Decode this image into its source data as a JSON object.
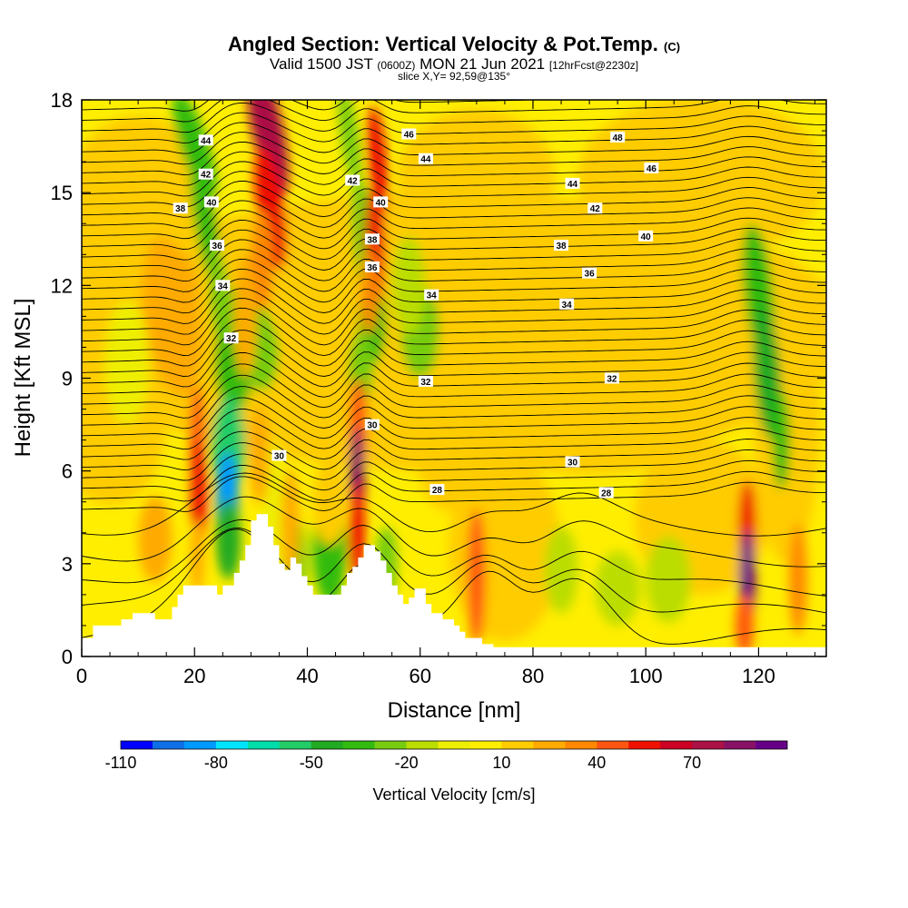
{
  "title": {
    "main": "Angled Section: Vertical Velocity & Pot.Temp.",
    "main_tag": "(C)",
    "valid_a": "Valid 1500 JST",
    "valid_zulu": "(0600Z)",
    "valid_b": "MON 21 Jun 2021",
    "valid_fcst": "[12hrFcst@2230z]",
    "slice": "slice X,Y= 92,59@135°"
  },
  "chart_data": {
    "type": "heatmap",
    "xlabel": "Distance [nm]",
    "ylabel": "Height [Kft MSL]",
    "xlim": [
      0,
      132
    ],
    "ylim": [
      0,
      18
    ],
    "x_ticks": [
      0,
      20,
      40,
      60,
      80,
      100,
      120
    ],
    "y_ticks": [
      0,
      3,
      6,
      9,
      12,
      15,
      18
    ],
    "colorbar": {
      "title": "Vertical Velocity [cm/s]",
      "labels": [
        "-110",
        "-80",
        "-50",
        "-20",
        "10",
        "40",
        "70"
      ],
      "label_values": [
        -110,
        -80,
        -50,
        -20,
        10,
        40,
        70
      ],
      "levels": [
        -110,
        -100,
        -90,
        -80,
        -70,
        -60,
        -50,
        -40,
        -30,
        -20,
        -10,
        0,
        10,
        20,
        30,
        40,
        50,
        60,
        70,
        80,
        90
      ],
      "colors": [
        "#0000ff",
        "#0f6fe6",
        "#0099ff",
        "#00e5ff",
        "#00ddaa",
        "#22cc66",
        "#22aa22",
        "#33bb11",
        "#77cc11",
        "#bbdd00",
        "#eeee00",
        "#ffee00",
        "#ffcc00",
        "#ffaa00",
        "#ff8800",
        "#ff5511",
        "#ee1100",
        "#cc0022",
        "#aa1144",
        "#881166",
        "#660088"
      ]
    },
    "contour_labels": [
      {
        "text": "44",
        "x": 22,
        "z": 16.7
      },
      {
        "text": "42",
        "x": 22,
        "z": 15.6
      },
      {
        "text": "40",
        "x": 23,
        "z": 14.7
      },
      {
        "text": "38",
        "x": 17.5,
        "z": 14.5
      },
      {
        "text": "36",
        "x": 24,
        "z": 13.3
      },
      {
        "text": "34",
        "x": 25,
        "z": 12.0
      },
      {
        "text": "32",
        "x": 26.5,
        "z": 10.3
      },
      {
        "text": "30",
        "x": 35,
        "z": 6.5
      },
      {
        "text": "42",
        "x": 48,
        "z": 15.4
      },
      {
        "text": "40",
        "x": 53,
        "z": 14.7
      },
      {
        "text": "38",
        "x": 51.5,
        "z": 13.5
      },
      {
        "text": "36",
        "x": 51.5,
        "z": 12.6
      },
      {
        "text": "30",
        "x": 51.5,
        "z": 7.5
      },
      {
        "text": "46",
        "x": 58,
        "z": 16.9
      },
      {
        "text": "44",
        "x": 61,
        "z": 16.1
      },
      {
        "text": "34",
        "x": 62,
        "z": 11.7
      },
      {
        "text": "32",
        "x": 61,
        "z": 8.9
      },
      {
        "text": "28",
        "x": 63,
        "z": 5.4
      },
      {
        "text": "48",
        "x": 95,
        "z": 16.8
      },
      {
        "text": "46",
        "x": 101,
        "z": 15.8
      },
      {
        "text": "44",
        "x": 87,
        "z": 15.3
      },
      {
        "text": "42",
        "x": 91,
        "z": 14.5
      },
      {
        "text": "40",
        "x": 100,
        "z": 13.6
      },
      {
        "text": "38",
        "x": 85,
        "z": 13.3
      },
      {
        "text": "36",
        "x": 90,
        "z": 12.4
      },
      {
        "text": "34",
        "x": 86,
        "z": 11.4
      },
      {
        "text": "32",
        "x": 94,
        "z": 9.0
      },
      {
        "text": "30",
        "x": 87,
        "z": 6.3
      },
      {
        "text": "28",
        "x": 93,
        "z": 5.3
      }
    ]
  }
}
